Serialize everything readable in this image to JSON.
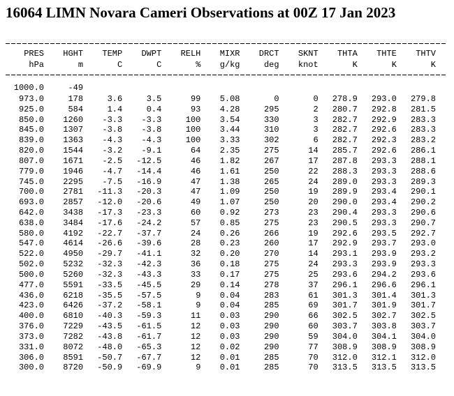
{
  "title": "16064 LIMN Novara Cameri Observations at 00Z 17 Jan 2023",
  "table": {
    "columns": [
      {
        "name": "PRES",
        "unit": "hPa"
      },
      {
        "name": "HGHT",
        "unit": "m"
      },
      {
        "name": "TEMP",
        "unit": "C"
      },
      {
        "name": "DWPT",
        "unit": "C"
      },
      {
        "name": "RELH",
        "unit": "%"
      },
      {
        "name": "MIXR",
        "unit": "g/kg"
      },
      {
        "name": "DRCT",
        "unit": "deg"
      },
      {
        "name": "SKNT",
        "unit": "knot"
      },
      {
        "name": "THTA",
        "unit": "K"
      },
      {
        "name": "THTE",
        "unit": "K"
      },
      {
        "name": "THTV",
        "unit": "K"
      }
    ],
    "rows": [
      [
        "1000.0",
        "-49"
      ],
      [
        "973.0",
        "178",
        "3.6",
        "3.5",
        "99",
        "5.08",
        "0",
        "0",
        "278.9",
        "293.0",
        "279.8"
      ],
      [
        "925.0",
        "584",
        "1.4",
        "0.4",
        "93",
        "4.28",
        "295",
        "2",
        "280.7",
        "292.8",
        "281.5"
      ],
      [
        "850.0",
        "1260",
        "-3.3",
        "-3.3",
        "100",
        "3.54",
        "330",
        "3",
        "282.7",
        "292.9",
        "283.3"
      ],
      [
        "845.0",
        "1307",
        "-3.8",
        "-3.8",
        "100",
        "3.44",
        "310",
        "3",
        "282.7",
        "292.6",
        "283.3"
      ],
      [
        "839.0",
        "1363",
        "-4.3",
        "-4.3",
        "100",
        "3.33",
        "302",
        "6",
        "282.7",
        "292.3",
        "283.2"
      ],
      [
        "820.0",
        "1544",
        "-3.2",
        "-9.1",
        "64",
        "2.35",
        "275",
        "14",
        "285.7",
        "292.6",
        "286.1"
      ],
      [
        "807.0",
        "1671",
        "-2.5",
        "-12.5",
        "46",
        "1.82",
        "267",
        "17",
        "287.8",
        "293.3",
        "288.1"
      ],
      [
        "779.0",
        "1946",
        "-4.7",
        "-14.4",
        "46",
        "1.61",
        "250",
        "22",
        "288.3",
        "293.3",
        "288.6"
      ],
      [
        "745.0",
        "2295",
        "-7.5",
        "-16.9",
        "47",
        "1.38",
        "265",
        "24",
        "289.0",
        "293.3",
        "289.3"
      ],
      [
        "700.0",
        "2781",
        "-11.3",
        "-20.3",
        "47",
        "1.09",
        "250",
        "19",
        "289.9",
        "293.4",
        "290.1"
      ],
      [
        "693.0",
        "2857",
        "-12.0",
        "-20.6",
        "49",
        "1.07",
        "250",
        "20",
        "290.0",
        "293.4",
        "290.2"
      ],
      [
        "642.0",
        "3438",
        "-17.3",
        "-23.3",
        "60",
        "0.92",
        "273",
        "23",
        "290.4",
        "293.3",
        "290.6"
      ],
      [
        "638.0",
        "3484",
        "-17.6",
        "-24.2",
        "57",
        "0.85",
        "275",
        "23",
        "290.5",
        "293.3",
        "290.7"
      ],
      [
        "580.0",
        "4192",
        "-22.7",
        "-37.7",
        "24",
        "0.26",
        "266",
        "19",
        "292.6",
        "293.5",
        "292.7"
      ],
      [
        "547.0",
        "4614",
        "-26.6",
        "-39.6",
        "28",
        "0.23",
        "260",
        "17",
        "292.9",
        "293.7",
        "293.0"
      ],
      [
        "522.0",
        "4950",
        "-29.7",
        "-41.1",
        "32",
        "0.20",
        "270",
        "14",
        "293.1",
        "293.9",
        "293.2"
      ],
      [
        "502.0",
        "5232",
        "-32.3",
        "-42.3",
        "36",
        "0.18",
        "275",
        "24",
        "293.3",
        "293.9",
        "293.3"
      ],
      [
        "500.0",
        "5260",
        "-32.3",
        "-43.3",
        "33",
        "0.17",
        "275",
        "25",
        "293.6",
        "294.2",
        "293.6"
      ],
      [
        "477.0",
        "5591",
        "-33.5",
        "-45.5",
        "29",
        "0.14",
        "278",
        "37",
        "296.1",
        "296.6",
        "296.1"
      ],
      [
        "436.0",
        "6218",
        "-35.5",
        "-57.5",
        "9",
        "0.04",
        "283",
        "61",
        "301.3",
        "301.4",
        "301.3"
      ],
      [
        "423.0",
        "6426",
        "-37.2",
        "-58.1",
        "9",
        "0.04",
        "285",
        "69",
        "301.7",
        "301.9",
        "301.7"
      ],
      [
        "400.0",
        "6810",
        "-40.3",
        "-59.3",
        "11",
        "0.03",
        "290",
        "66",
        "302.5",
        "302.7",
        "302.5"
      ],
      [
        "376.0",
        "7229",
        "-43.5",
        "-61.5",
        "12",
        "0.03",
        "290",
        "60",
        "303.7",
        "303.8",
        "303.7"
      ],
      [
        "373.0",
        "7282",
        "-43.8",
        "-61.7",
        "12",
        "0.03",
        "290",
        "59",
        "304.0",
        "304.1",
        "304.0"
      ],
      [
        "331.0",
        "8072",
        "-48.0",
        "-65.3",
        "12",
        "0.02",
        "290",
        "77",
        "308.9",
        "308.9",
        "308.9"
      ],
      [
        "306.0",
        "8591",
        "-50.7",
        "-67.7",
        "12",
        "0.01",
        "285",
        "70",
        "312.0",
        "312.1",
        "312.0"
      ],
      [
        "300.0",
        "8720",
        "-50.9",
        "-69.9",
        "9",
        "0.01",
        "285",
        "70",
        "313.5",
        "313.5",
        "313.5"
      ]
    ]
  }
}
